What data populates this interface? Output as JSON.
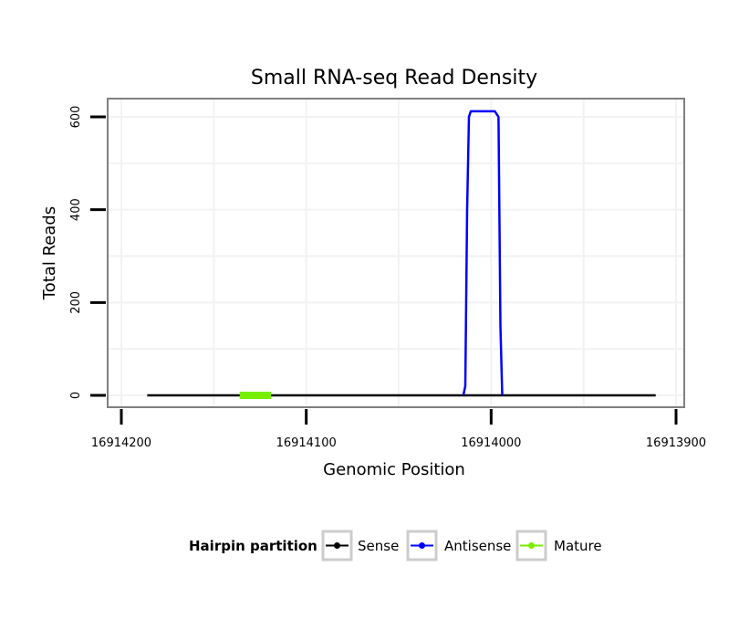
{
  "chart_data": {
    "type": "line",
    "title": "Small RNA-seq Read Density",
    "xlabel": "Genomic Position",
    "ylabel": "Total Reads",
    "x_reversed": true,
    "xlim": [
      16914200,
      16913900
    ],
    "ylim": [
      0,
      640
    ],
    "x_ticks": [
      16914200,
      16914100,
      16914000,
      16913900
    ],
    "x_tick_labels": [
      "16914200",
      "16914100",
      "16914000",
      "16913900"
    ],
    "y_ticks": [
      0,
      200,
      400,
      600
    ],
    "y_tick_labels": [
      "0",
      "200",
      "400",
      "600"
    ],
    "grid": true,
    "legend": {
      "title": "Hairpin partition",
      "position": "bottom"
    },
    "series": [
      {
        "name": "Sense",
        "color": "#000000",
        "x": [
          16914186,
          16913911
        ],
        "y": [
          0,
          0
        ]
      },
      {
        "name": "Antisense",
        "color": "#0000ff",
        "x": [
          16914015,
          16914014,
          16914014,
          16914013,
          16914012,
          16914011,
          16914010,
          16913998,
          16913996,
          16913995,
          16913994
        ],
        "y": [
          0,
          20,
          20,
          400,
          600,
          612,
          612,
          612,
          600,
          150,
          0
        ]
      },
      {
        "name": "Mature",
        "color": "#77ee00",
        "x": [
          16914136,
          16914119
        ],
        "y": [
          0,
          0
        ]
      }
    ]
  }
}
